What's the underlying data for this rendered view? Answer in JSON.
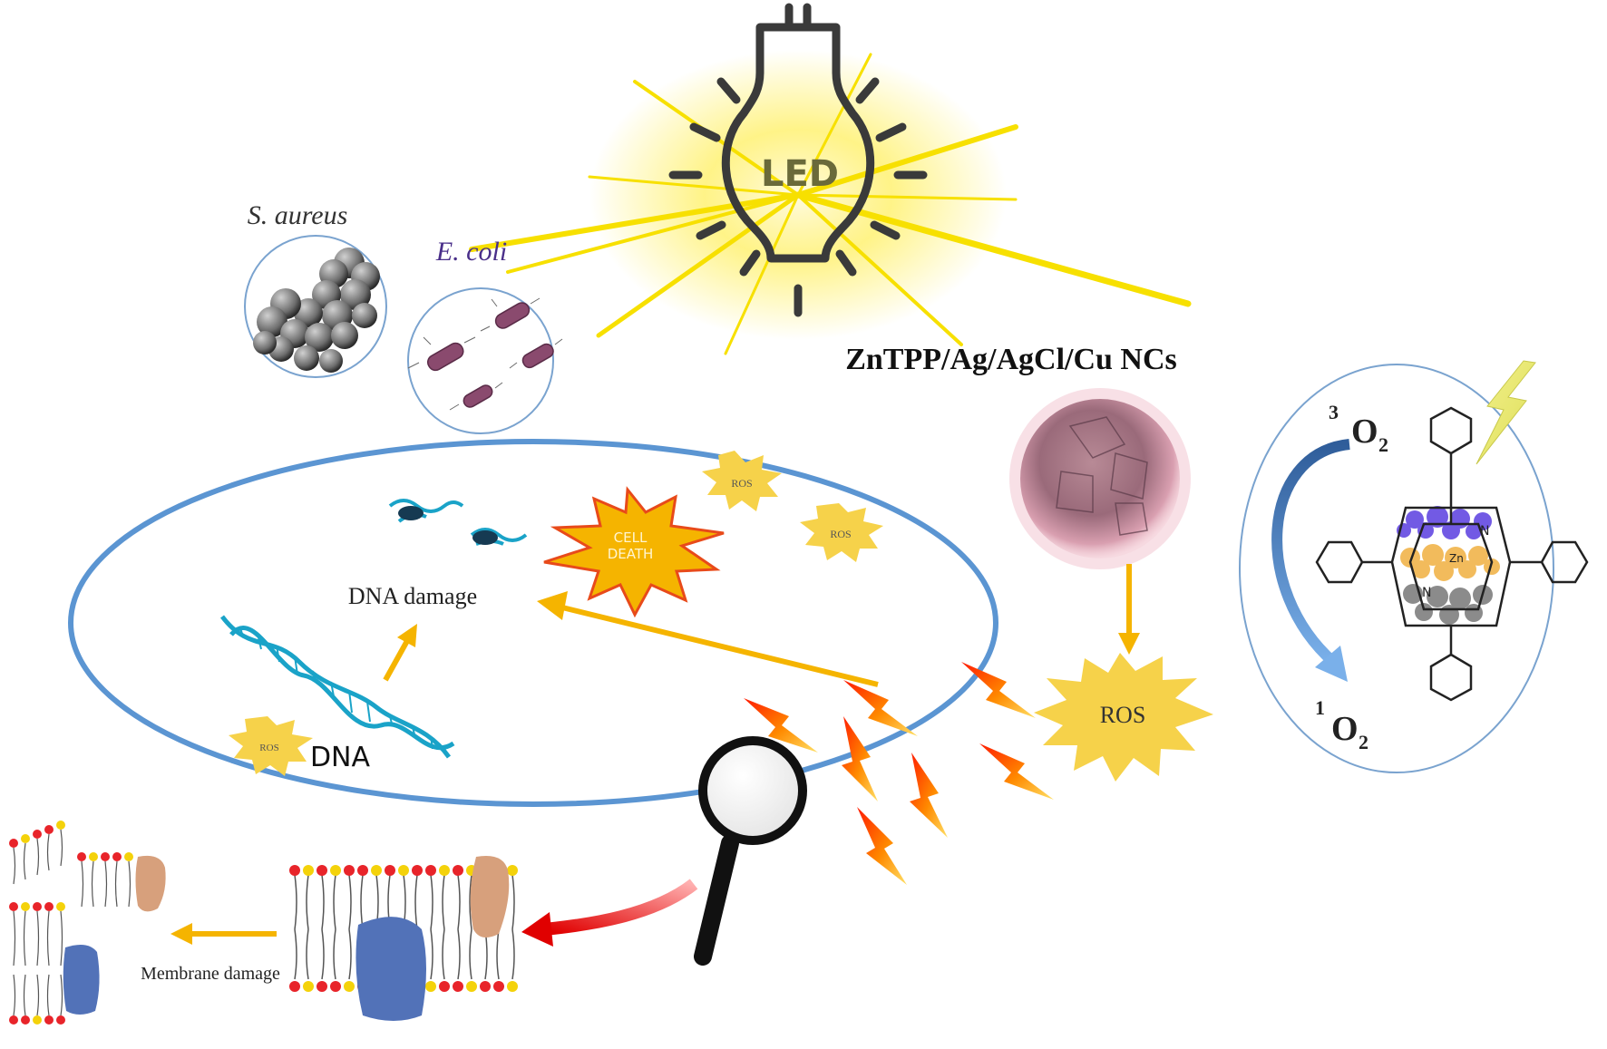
{
  "labels": {
    "led": "LED",
    "s_aureus": "S. aureus",
    "e_coli": "E. coli",
    "nc_title": "ZnTPP/Ag/AgCl/Cu NCs",
    "ros": "ROS",
    "cell_death_line1": "CELL",
    "cell_death_line2": "DEATH",
    "dna_damage": "DNA damage",
    "dna": "DNA",
    "membrane_damage": "Membrane damage",
    "triplet_sup": "3",
    "triplet_o": "O",
    "triplet_sub": "2",
    "singlet_sup": "1",
    "singlet_o": "O",
    "singlet_sub": "2",
    "zn": "Zn",
    "n": "N"
  },
  "colors": {
    "cell_outline": "#5b95d2",
    "light_yellow": "#f7e000",
    "arrow_yellow": "#f5b400",
    "arrow_red": "#e00000",
    "ros_fill": "#f6d24a",
    "cell_death_fill": "#f5b400",
    "cell_death_edge": "#e84a1a",
    "zntpp_particle": "#d89aa8",
    "blue_arrow": "#4f8ad0",
    "porphyrin_purple": "#5a3ee0",
    "porphyrin_orange": "#f0b040",
    "porphyrin_grey": "#777777",
    "protein_blue": "#5272b8",
    "protein_tan": "#d7a07c",
    "lipid_head_red": "#e8242a",
    "lipid_head_yellow": "#f4d20a"
  }
}
